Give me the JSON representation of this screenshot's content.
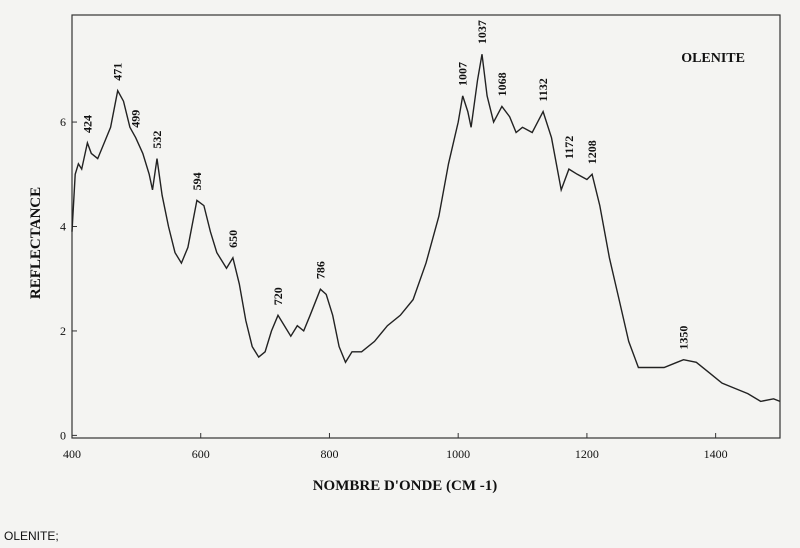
{
  "chart_data": {
    "type": "line",
    "title": "OLENITE",
    "caption": "OLENITE;",
    "xlabel": "NOMBRE D'ONDE (CM -1)",
    "ylabel": "REFLECTANCE",
    "xlim": [
      400,
      1500
    ],
    "ylim": [
      -0.05,
      8.05
    ],
    "xticks": [
      400,
      600,
      800,
      1000,
      1200,
      1400
    ],
    "yticks": [
      0,
      2,
      4,
      6
    ],
    "grid": false,
    "x": [
      400,
      405,
      410,
      415,
      424,
      430,
      440,
      450,
      460,
      471,
      480,
      490,
      499,
      510,
      520,
      525,
      532,
      540,
      550,
      560,
      570,
      580,
      594,
      605,
      615,
      625,
      640,
      650,
      660,
      670,
      680,
      690,
      700,
      710,
      720,
      730,
      740,
      750,
      760,
      770,
      786,
      795,
      805,
      815,
      825,
      835,
      850,
      870,
      890,
      910,
      930,
      950,
      970,
      985,
      1000,
      1007,
      1015,
      1020,
      1030,
      1037,
      1045,
      1055,
      1068,
      1080,
      1090,
      1100,
      1115,
      1132,
      1145,
      1160,
      1172,
      1185,
      1200,
      1208,
      1220,
      1235,
      1250,
      1265,
      1280,
      1300,
      1320,
      1340,
      1350,
      1370,
      1390,
      1410,
      1430,
      1450,
      1470,
      1490,
      1500
    ],
    "series": [
      {
        "name": "OLENITE",
        "color": "#222222",
        "values": [
          3.9,
          5.0,
          5.2,
          5.1,
          5.6,
          5.4,
          5.3,
          5.6,
          5.9,
          6.6,
          6.4,
          5.9,
          5.7,
          5.4,
          5.0,
          4.7,
          5.3,
          4.6,
          4.0,
          3.5,
          3.3,
          3.6,
          4.5,
          4.4,
          3.9,
          3.5,
          3.2,
          3.4,
          2.9,
          2.2,
          1.7,
          1.5,
          1.6,
          2.0,
          2.3,
          2.1,
          1.9,
          2.1,
          2.0,
          2.3,
          2.8,
          2.7,
          2.3,
          1.7,
          1.4,
          1.6,
          1.6,
          1.8,
          2.1,
          2.3,
          2.6,
          3.3,
          4.2,
          5.2,
          6.0,
          6.5,
          6.2,
          5.9,
          6.8,
          7.3,
          6.5,
          6.0,
          6.3,
          6.1,
          5.8,
          5.9,
          5.8,
          6.2,
          5.7,
          4.7,
          5.1,
          5.0,
          4.9,
          5.0,
          4.4,
          3.4,
          2.6,
          1.8,
          1.3,
          1.3,
          1.3,
          1.4,
          1.45,
          1.4,
          1.2,
          1.0,
          0.9,
          0.8,
          0.65,
          0.7,
          0.65
        ]
      }
    ],
    "peaks": [
      424,
      471,
      499,
      532,
      594,
      650,
      720,
      786,
      1007,
      1037,
      1068,
      1132,
      1172,
      1208,
      1350
    ]
  }
}
